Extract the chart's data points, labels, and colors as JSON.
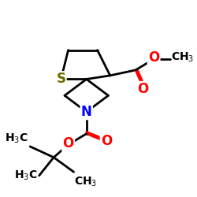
{
  "bg_color": "#ffffff",
  "atom_colors": {
    "S": "#6b6b00",
    "N": "#0000ff",
    "O": "#ff0000",
    "C": "#000000"
  },
  "bond_lw": 2.0,
  "font_size_atom": 12,
  "font_size_label": 10
}
